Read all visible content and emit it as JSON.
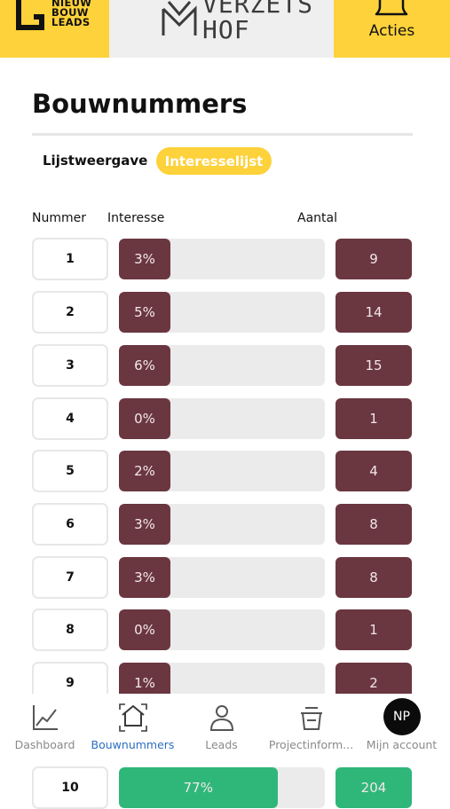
{
  "header": {
    "logo_text": [
      "NIEUW",
      "BOUW",
      "LEADS"
    ],
    "project_name": "VERZETS\nHOF",
    "actions_label": "Acties"
  },
  "page": {
    "title": "Bouwnummers",
    "tabs": [
      {
        "label": "Lijstweergave",
        "active": false
      },
      {
        "label": "Interesselijst",
        "active": true
      }
    ],
    "columns": {
      "number": "Nummer",
      "interest": "Interesse",
      "count": "Aantal"
    }
  },
  "rows": [
    {
      "number": "1",
      "interest": "3%",
      "interest_value": 3,
      "count": "9"
    },
    {
      "number": "2",
      "interest": "5%",
      "interest_value": 5,
      "count": "14"
    },
    {
      "number": "3",
      "interest": "6%",
      "interest_value": 6,
      "count": "15"
    },
    {
      "number": "4",
      "interest": "0%",
      "interest_value": 0,
      "count": "1"
    },
    {
      "number": "5",
      "interest": "2%",
      "interest_value": 2,
      "count": "4"
    },
    {
      "number": "6",
      "interest": "3%",
      "interest_value": 3,
      "count": "8"
    },
    {
      "number": "7",
      "interest": "3%",
      "interest_value": 3,
      "count": "8"
    },
    {
      "number": "8",
      "interest": "0%",
      "interest_value": 0,
      "count": "1"
    },
    {
      "number": "9",
      "interest": "1%",
      "interest_value": 1,
      "count": "2"
    },
    {
      "number": "10",
      "interest": "77%",
      "interest_value": 77,
      "count": "204",
      "highlight": true
    }
  ],
  "bottom_nav": [
    {
      "label": "Dashboard",
      "icon": "chart-line-icon",
      "active": false
    },
    {
      "label": "Bouwnummers",
      "icon": "house-icon",
      "active": true
    },
    {
      "label": "Leads",
      "icon": "person-icon",
      "active": false
    },
    {
      "label": "Projectinform...",
      "icon": "basket-icon",
      "active": false
    },
    {
      "label": "Mijn account",
      "icon": "avatar",
      "avatar_initials": "NP",
      "active": false
    }
  ],
  "colors": {
    "brand_yellow": "#fdd23a",
    "bar_fill": "#6a3640",
    "highlight_green": "#2fb77a",
    "active_nav": "#2c6fbf"
  }
}
